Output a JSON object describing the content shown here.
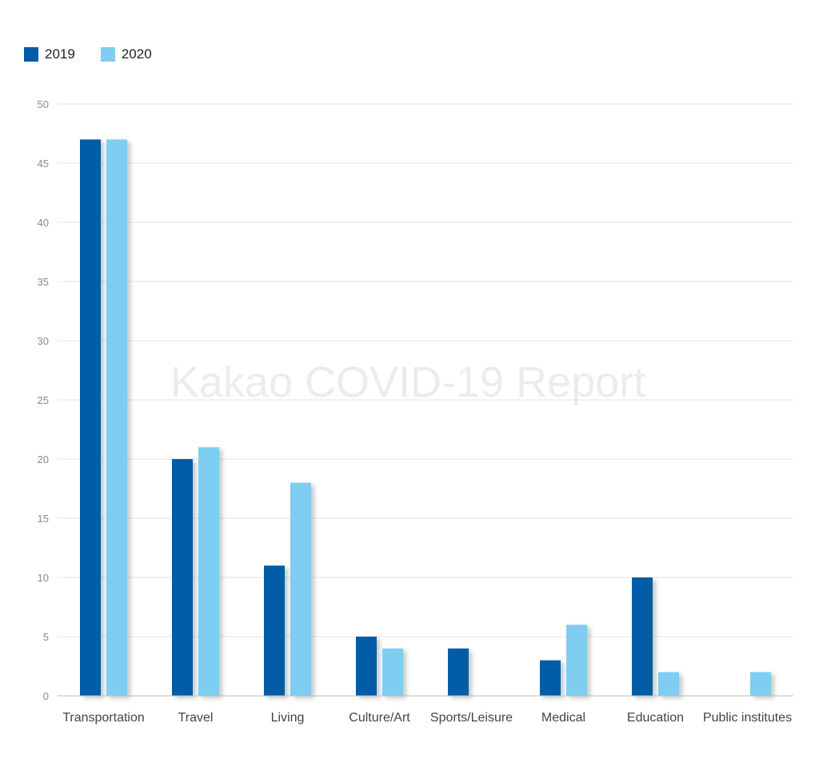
{
  "chart_data": {
    "type": "bar",
    "title": "",
    "watermark": "Kakao COVID-19 Report",
    "xlabel": "",
    "ylabel": "",
    "ylim": [
      0,
      50
    ],
    "yticks": [
      0,
      5,
      10,
      15,
      20,
      25,
      30,
      35,
      40,
      45,
      50
    ],
    "grid": true,
    "legend_position": "top-left",
    "categories": [
      "Transportation",
      "Travel",
      "Living",
      "Culture/Art",
      "Sports/Leisure",
      "Medical",
      "Education",
      "Public institutes"
    ],
    "series": [
      {
        "name": "2019",
        "color": "#005BA6",
        "values": [
          47,
          20,
          11,
          5,
          4,
          3,
          10,
          0
        ]
      },
      {
        "name": "2020",
        "color": "#7FCDF1",
        "values": [
          47,
          21,
          18,
          4,
          0,
          6,
          2,
          2
        ]
      }
    ]
  }
}
